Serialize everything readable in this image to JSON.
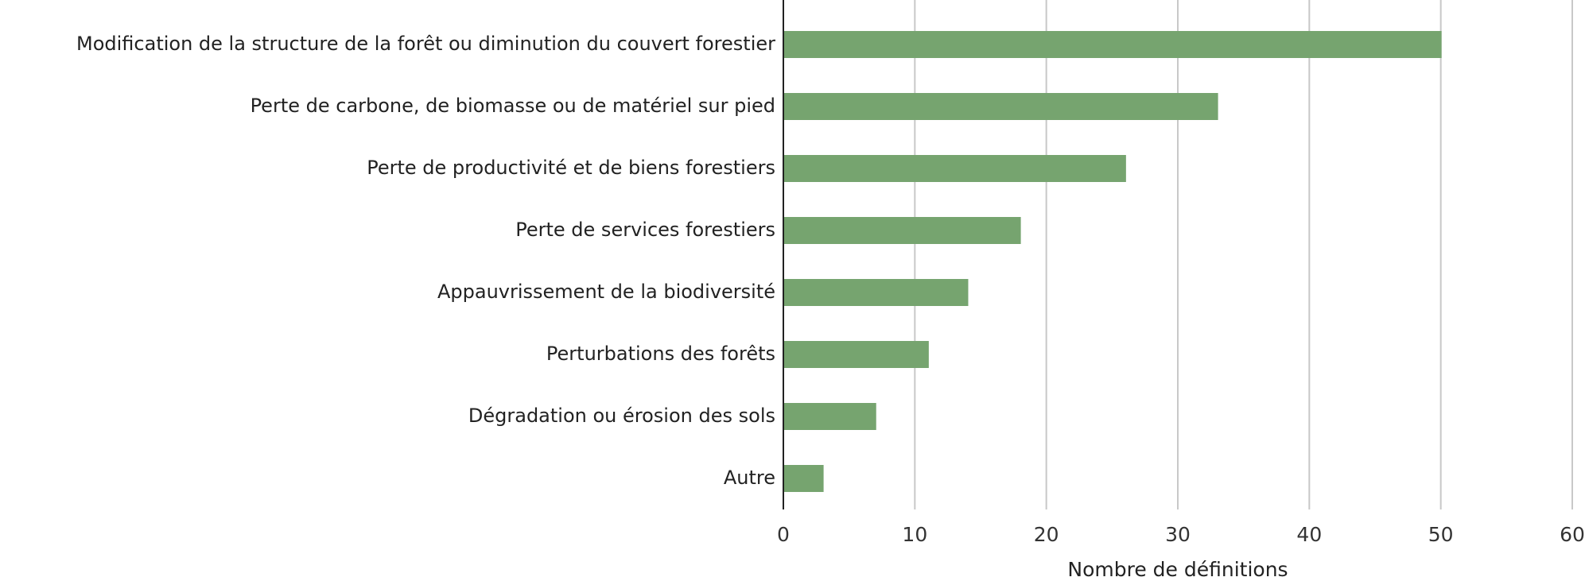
{
  "chart_data": {
    "type": "bar",
    "orientation": "horizontal",
    "x_label": "Nombre de définitions",
    "categories": [
      "Modification de la structure de la forêt ou diminution du couvert forestier",
      "Perte de carbone, de biomasse ou de matériel sur pied",
      "Perte de productivité et de biens forestiers",
      "Perte de services forestiers",
      "Appauvrissement de la biodiversité",
      "Perturbations des forêts",
      "Dégradation ou érosion des sols",
      "Autre"
    ],
    "values": [
      50,
      33,
      26,
      18,
      14,
      11,
      7,
      3
    ],
    "color": "#76a46f",
    "xlim": [
      0,
      60
    ],
    "xticks": [
      0,
      10,
      20,
      30,
      40,
      50,
      60
    ],
    "grid": true
  }
}
